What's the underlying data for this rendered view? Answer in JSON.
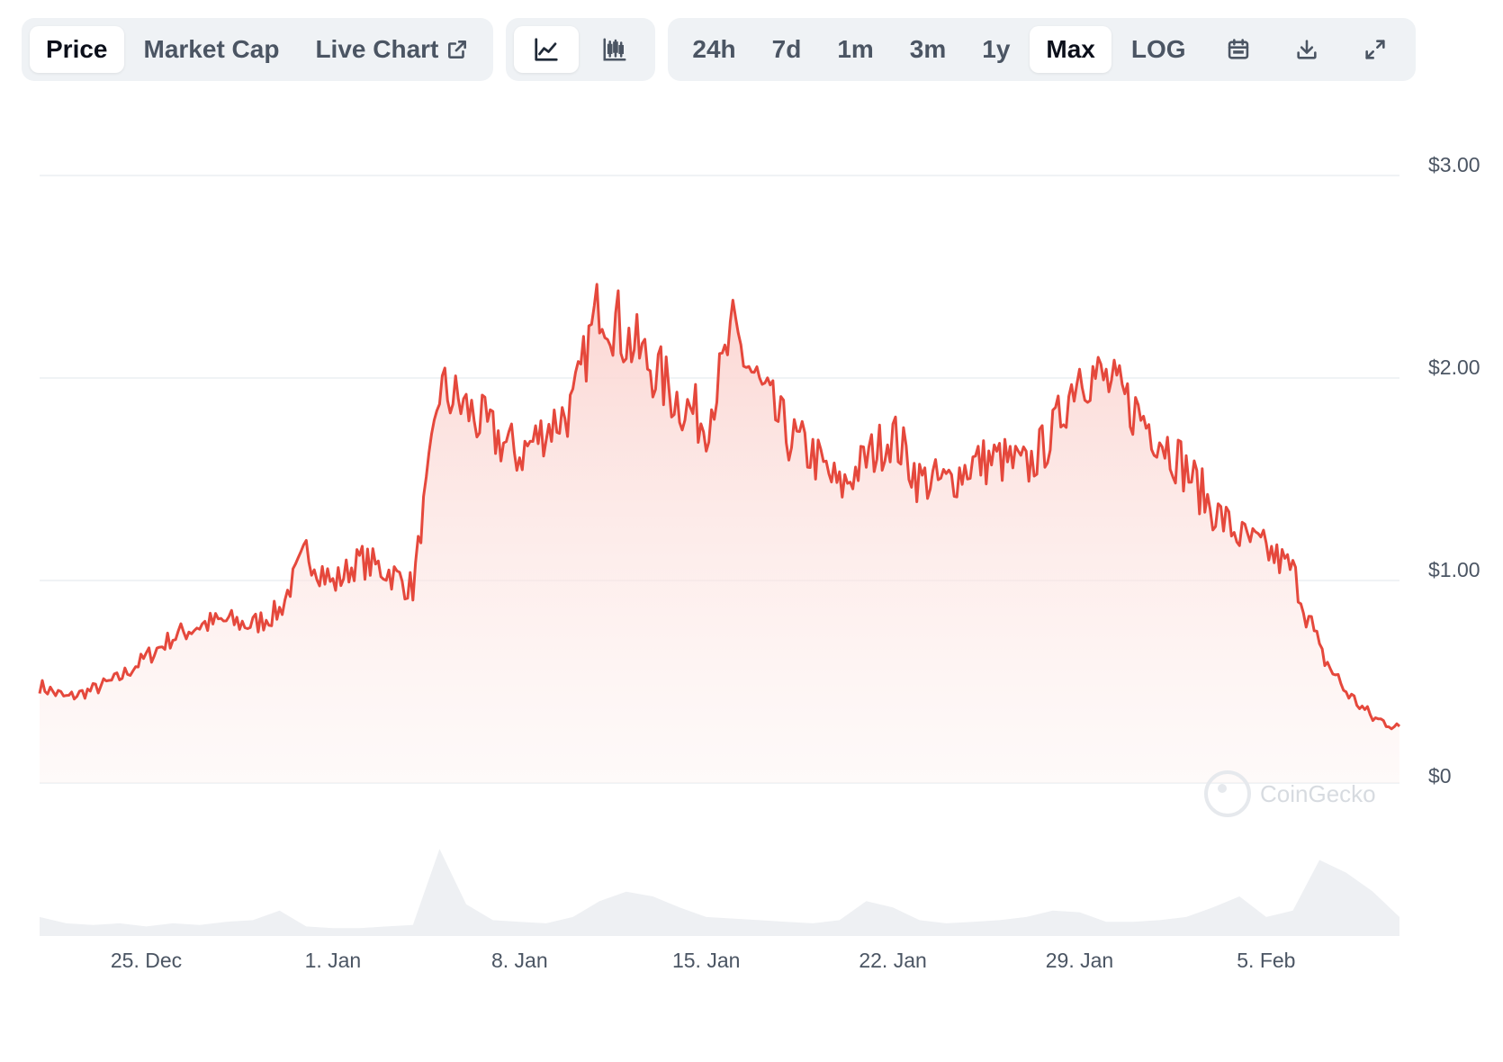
{
  "toolbar": {
    "view_tabs": [
      {
        "label": "Price",
        "active": true
      },
      {
        "label": "Market Cap",
        "active": false
      },
      {
        "label": "Live Chart",
        "active": false
      }
    ],
    "chart_types": [
      {
        "icon": "line-chart-icon",
        "active": true
      },
      {
        "icon": "candlestick-chart-icon",
        "active": false
      }
    ],
    "ranges": [
      {
        "label": "24h",
        "active": false
      },
      {
        "label": "7d",
        "active": false
      },
      {
        "label": "1m",
        "active": false
      },
      {
        "label": "3m",
        "active": false
      },
      {
        "label": "1y",
        "active": false
      },
      {
        "label": "Max",
        "active": true
      },
      {
        "label": "LOG",
        "active": false
      }
    ],
    "tools": [
      "calendar-icon",
      "download-icon",
      "expand-icon"
    ]
  },
  "watermark": "CoinGecko",
  "colors": {
    "line": "#e5483c",
    "fill": "#fde3e1",
    "volume": "#eef0f3",
    "grid": "#eceff2",
    "axis_text": "#4b5563"
  },
  "chart_data": {
    "type": "area",
    "xlabel": "",
    "ylabel": "",
    "x_ticks": [
      "25. Dec",
      "1. Jan",
      "8. Jan",
      "15. Jan",
      "22. Jan",
      "29. Jan",
      "5. Feb"
    ],
    "y_ticks": [
      "$0",
      "$1.00",
      "$2.00",
      "$3.00"
    ],
    "ylim": [
      0,
      3.0
    ],
    "x_range_days": [
      "2023-12-21",
      "2024-02-10"
    ],
    "grid": true,
    "legend": "none",
    "series": [
      {
        "x": [
          "2023-12-21",
          "2023-12-22",
          "2023-12-23",
          "2023-12-24",
          "2023-12-25",
          "2023-12-26",
          "2023-12-27",
          "2023-12-28",
          "2023-12-29",
          "2023-12-30",
          "2023-12-31",
          "2024-01-01",
          "2024-01-02",
          "2024-01-03",
          "2024-01-04",
          "2024-01-05",
          "2024-01-06",
          "2024-01-07",
          "2024-01-08",
          "2024-01-09",
          "2024-01-10",
          "2024-01-11",
          "2024-01-12",
          "2024-01-13",
          "2024-01-14",
          "2024-01-15",
          "2024-01-16",
          "2024-01-17",
          "2024-01-18",
          "2024-01-19",
          "2024-01-20",
          "2024-01-21",
          "2024-01-22",
          "2024-01-23",
          "2024-01-24",
          "2024-01-25",
          "2024-01-26",
          "2024-01-27",
          "2024-01-28",
          "2024-01-29",
          "2024-01-30",
          "2024-01-31",
          "2024-02-01",
          "2024-02-02",
          "2024-02-03",
          "2024-02-04",
          "2024-02-05",
          "2024-02-06",
          "2024-02-07",
          "2024-02-08",
          "2024-02-09",
          "2024-02-10"
        ],
        "values": [
          0.48,
          0.42,
          0.46,
          0.52,
          0.62,
          0.72,
          0.78,
          0.8,
          0.78,
          0.85,
          1.15,
          0.98,
          1.1,
          1.05,
          0.96,
          1.95,
          1.85,
          1.72,
          1.62,
          1.75,
          1.85,
          2.4,
          2.2,
          2.05,
          1.88,
          1.78,
          2.22,
          1.95,
          1.72,
          1.62,
          1.45,
          1.6,
          1.72,
          1.5,
          1.48,
          1.58,
          1.6,
          1.55,
          1.72,
          2.05,
          1.98,
          1.85,
          1.72,
          1.55,
          1.35,
          1.22,
          1.15,
          1.05,
          0.65,
          0.45,
          0.32,
          0.28
        ],
        "volume": [
          0.12,
          0.08,
          0.07,
          0.08,
          0.06,
          0.08,
          0.07,
          0.09,
          0.1,
          0.16,
          0.06,
          0.05,
          0.05,
          0.06,
          0.07,
          0.55,
          0.2,
          0.1,
          0.09,
          0.08,
          0.12,
          0.22,
          0.28,
          0.25,
          0.18,
          0.12,
          0.11,
          0.1,
          0.09,
          0.08,
          0.1,
          0.22,
          0.18,
          0.1,
          0.08,
          0.09,
          0.1,
          0.12,
          0.16,
          0.15,
          0.09,
          0.09,
          0.1,
          0.12,
          0.18,
          0.25,
          0.12,
          0.16,
          0.48,
          0.4,
          0.28,
          0.12
        ]
      }
    ]
  }
}
